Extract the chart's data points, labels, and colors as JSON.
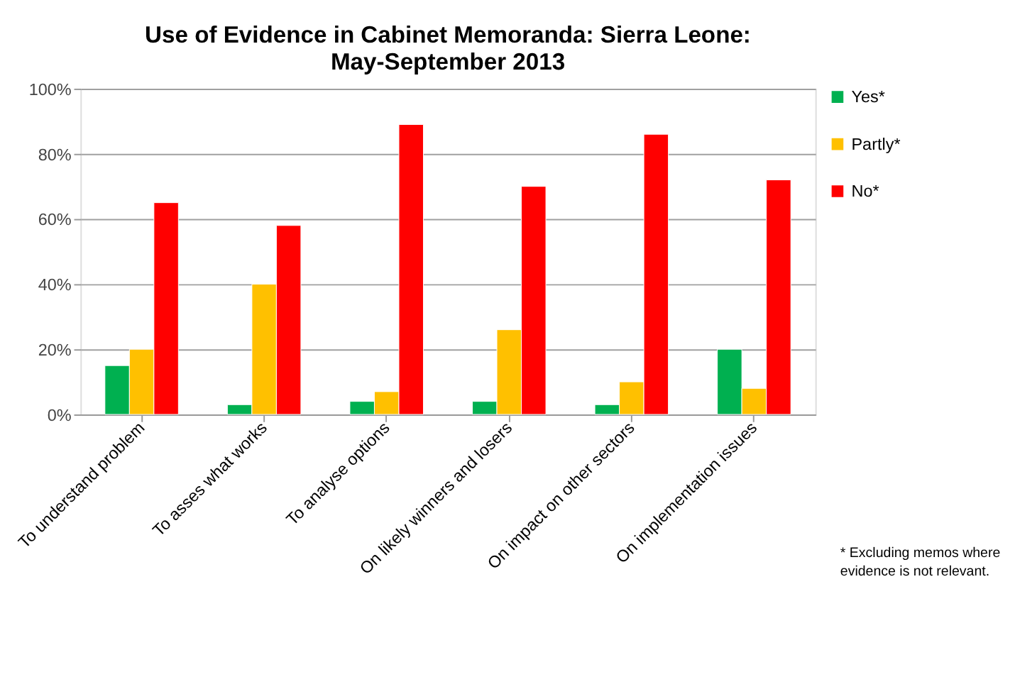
{
  "chart_data": {
    "type": "bar",
    "title": "Use of Evidence in Cabinet Memoranda: Sierra Leone: May-September 2013",
    "categories": [
      "To understand problem",
      "To asses what works",
      "To analyse options",
      "On likely winners and losers",
      "On impact on other sectors",
      "On implementation issues"
    ],
    "series": [
      {
        "name": "Yes*",
        "color": "#00b050",
        "values": [
          15,
          3,
          4,
          4,
          3,
          20
        ]
      },
      {
        "name": "Partly*",
        "color": "#ffc000",
        "values": [
          20,
          40,
          7,
          26,
          10,
          8
        ]
      },
      {
        "name": "No*",
        "color": "#ff0000",
        "values": [
          65,
          58,
          89,
          70,
          86,
          72
        ]
      }
    ],
    "ylim": [
      0,
      100
    ],
    "yticks": [
      {
        "value": 0,
        "label": "0%"
      },
      {
        "value": 20,
        "label": "20%"
      },
      {
        "value": 40,
        "label": "40%"
      },
      {
        "value": 60,
        "label": "60%"
      },
      {
        "value": 80,
        "label": "80%"
      },
      {
        "value": 100,
        "label": "100%"
      }
    ],
    "grid": "y",
    "legend": "right",
    "annotations": [
      "* Excluding memos where evidence is not relevant."
    ]
  }
}
